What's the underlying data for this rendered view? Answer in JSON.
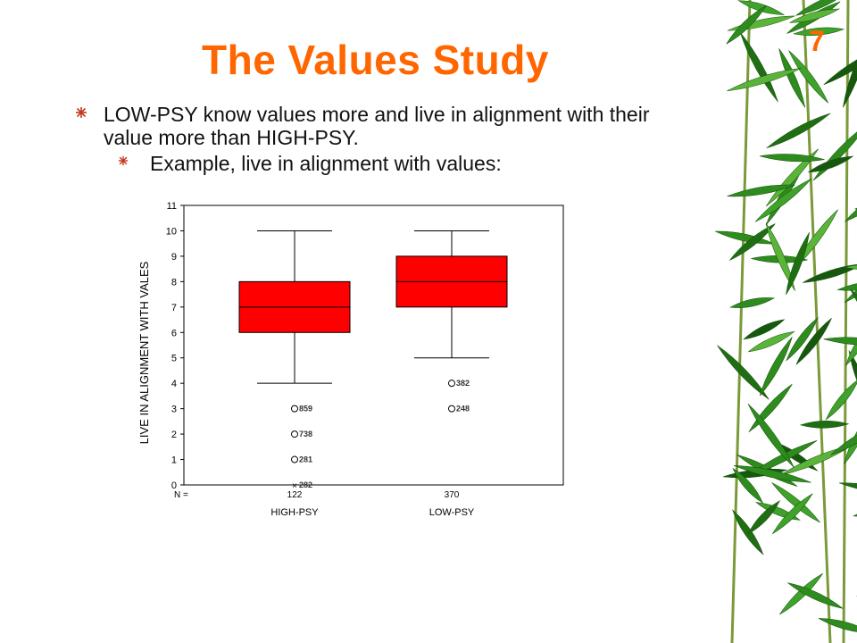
{
  "slide": {
    "title": "The Values Study",
    "page_number": "7",
    "bullets": [
      "LOW-PSY know values more and live in alignment with their value more than HIGH-PSY.",
      "Example, live in alignment with values:"
    ]
  },
  "colors": {
    "title": "#ff6600",
    "box": "#ff0000",
    "bamboo_leaf": "#2e8b1e"
  },
  "chart_data": {
    "type": "boxplot",
    "ylabel": "LIVE IN ALIGNMENT WITH VALES",
    "ylim": [
      0,
      11
    ],
    "yticks": [
      0,
      1,
      2,
      3,
      4,
      5,
      6,
      7,
      8,
      9,
      10,
      11
    ],
    "n_label": "N =",
    "grid": false,
    "groups": [
      {
        "name": "HIGH-PSY",
        "n": "122",
        "whisker_low": 4,
        "q1": 6,
        "median": 7,
        "q3": 8,
        "whisker_high": 10,
        "outliers": [
          {
            "y": 3,
            "label": "859",
            "marker": "circle"
          },
          {
            "y": 2,
            "label": "738",
            "marker": "circle"
          },
          {
            "y": 1,
            "label": "281",
            "marker": "circle"
          },
          {
            "y": 0,
            "label": "282",
            "marker": "x"
          }
        ]
      },
      {
        "name": "LOW-PSY",
        "n": "370",
        "whisker_low": 5,
        "q1": 7,
        "median": 8,
        "q3": 9,
        "whisker_high": 10,
        "outliers": [
          {
            "y": 4,
            "label": "382",
            "marker": "circle"
          },
          {
            "y": 3,
            "label": "248",
            "marker": "circle"
          }
        ]
      }
    ]
  }
}
